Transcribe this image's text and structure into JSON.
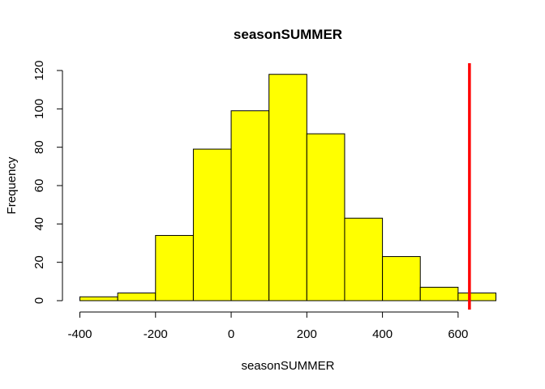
{
  "chart_data": {
    "type": "bar",
    "subtype": "histogram",
    "title": "seasonSUMMER",
    "xlabel": "seasonSUMMER",
    "ylabel": "Frequency",
    "bins": [
      {
        "start": -400,
        "end": -300,
        "count": 2
      },
      {
        "start": -300,
        "end": -200,
        "count": 4
      },
      {
        "start": -200,
        "end": -100,
        "count": 34
      },
      {
        "start": -100,
        "end": 0,
        "count": 79
      },
      {
        "start": 0,
        "end": 100,
        "count": 99
      },
      {
        "start": 100,
        "end": 200,
        "count": 118
      },
      {
        "start": 200,
        "end": 300,
        "count": 87
      },
      {
        "start": 300,
        "end": 400,
        "count": 43
      },
      {
        "start": 400,
        "end": 500,
        "count": 23
      },
      {
        "start": 500,
        "end": 600,
        "count": 7
      },
      {
        "start": 600,
        "end": 700,
        "count": 4
      }
    ],
    "xticks": [
      -400,
      -200,
      0,
      200,
      400,
      600
    ],
    "yticks": [
      0,
      20,
      40,
      60,
      80,
      100,
      120
    ],
    "xlim": [
      -400,
      700
    ],
    "ylim": [
      0,
      120
    ],
    "bar_color": "#ffff00",
    "bar_edge_color": "#000000",
    "reference_line": {
      "x": 630,
      "color": "#ff0000"
    },
    "grid": false,
    "legend": "none"
  }
}
